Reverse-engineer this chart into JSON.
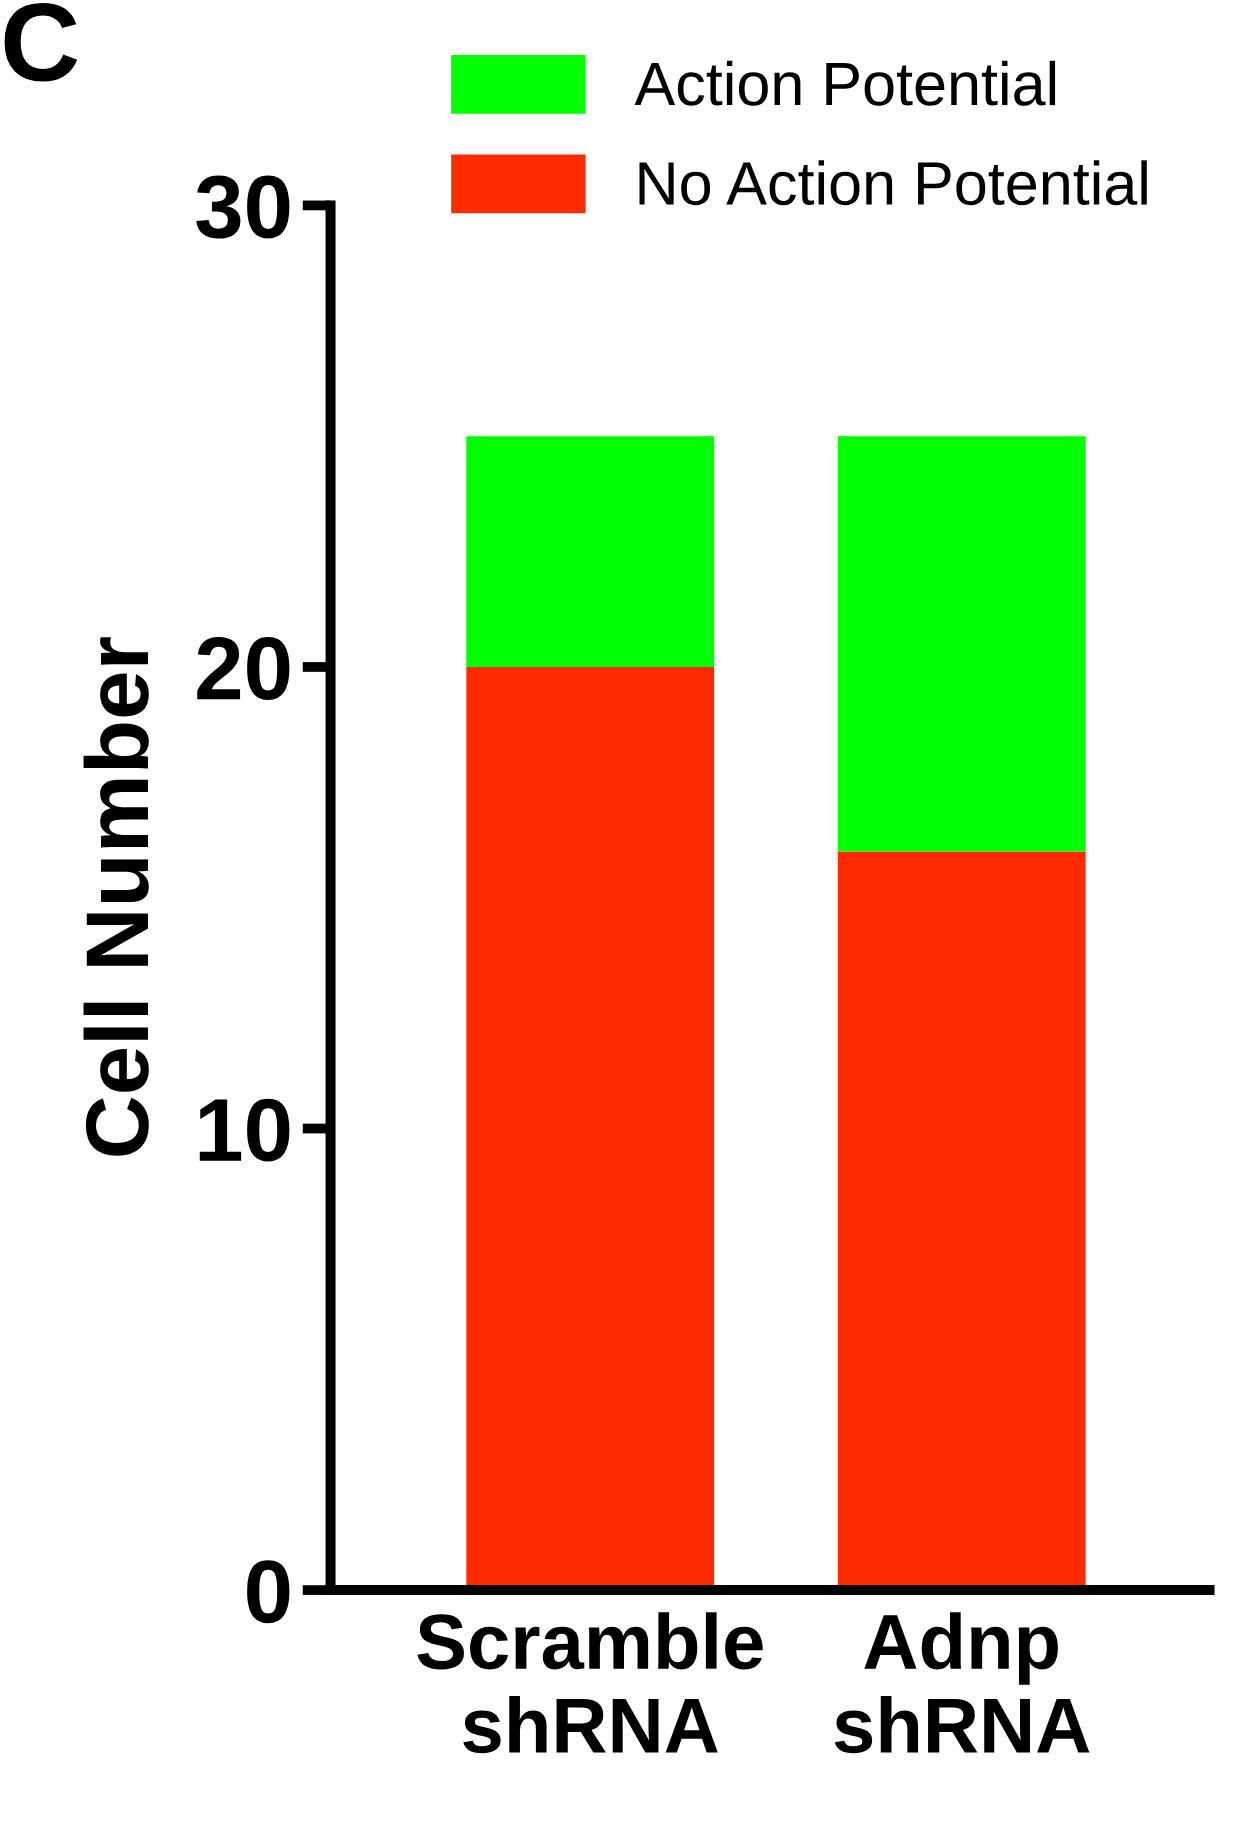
{
  "chart_data": {
    "type": "bar",
    "stacked": true,
    "categories": [
      "Scramble\nshRNA",
      "Adnp\nshRNA"
    ],
    "series": [
      {
        "name": "No Action Potential",
        "color": "#ff2a00",
        "values": [
          20,
          16
        ]
      },
      {
        "name": "Action Potential",
        "color": "#00ff00",
        "values": [
          5,
          9
        ]
      }
    ],
    "ylabel": "Cell Number",
    "ylim": [
      0,
      30
    ],
    "yticks": [
      0,
      10,
      20,
      30
    ],
    "grid": false,
    "legend": "top",
    "annotations": [
      "C"
    ]
  }
}
